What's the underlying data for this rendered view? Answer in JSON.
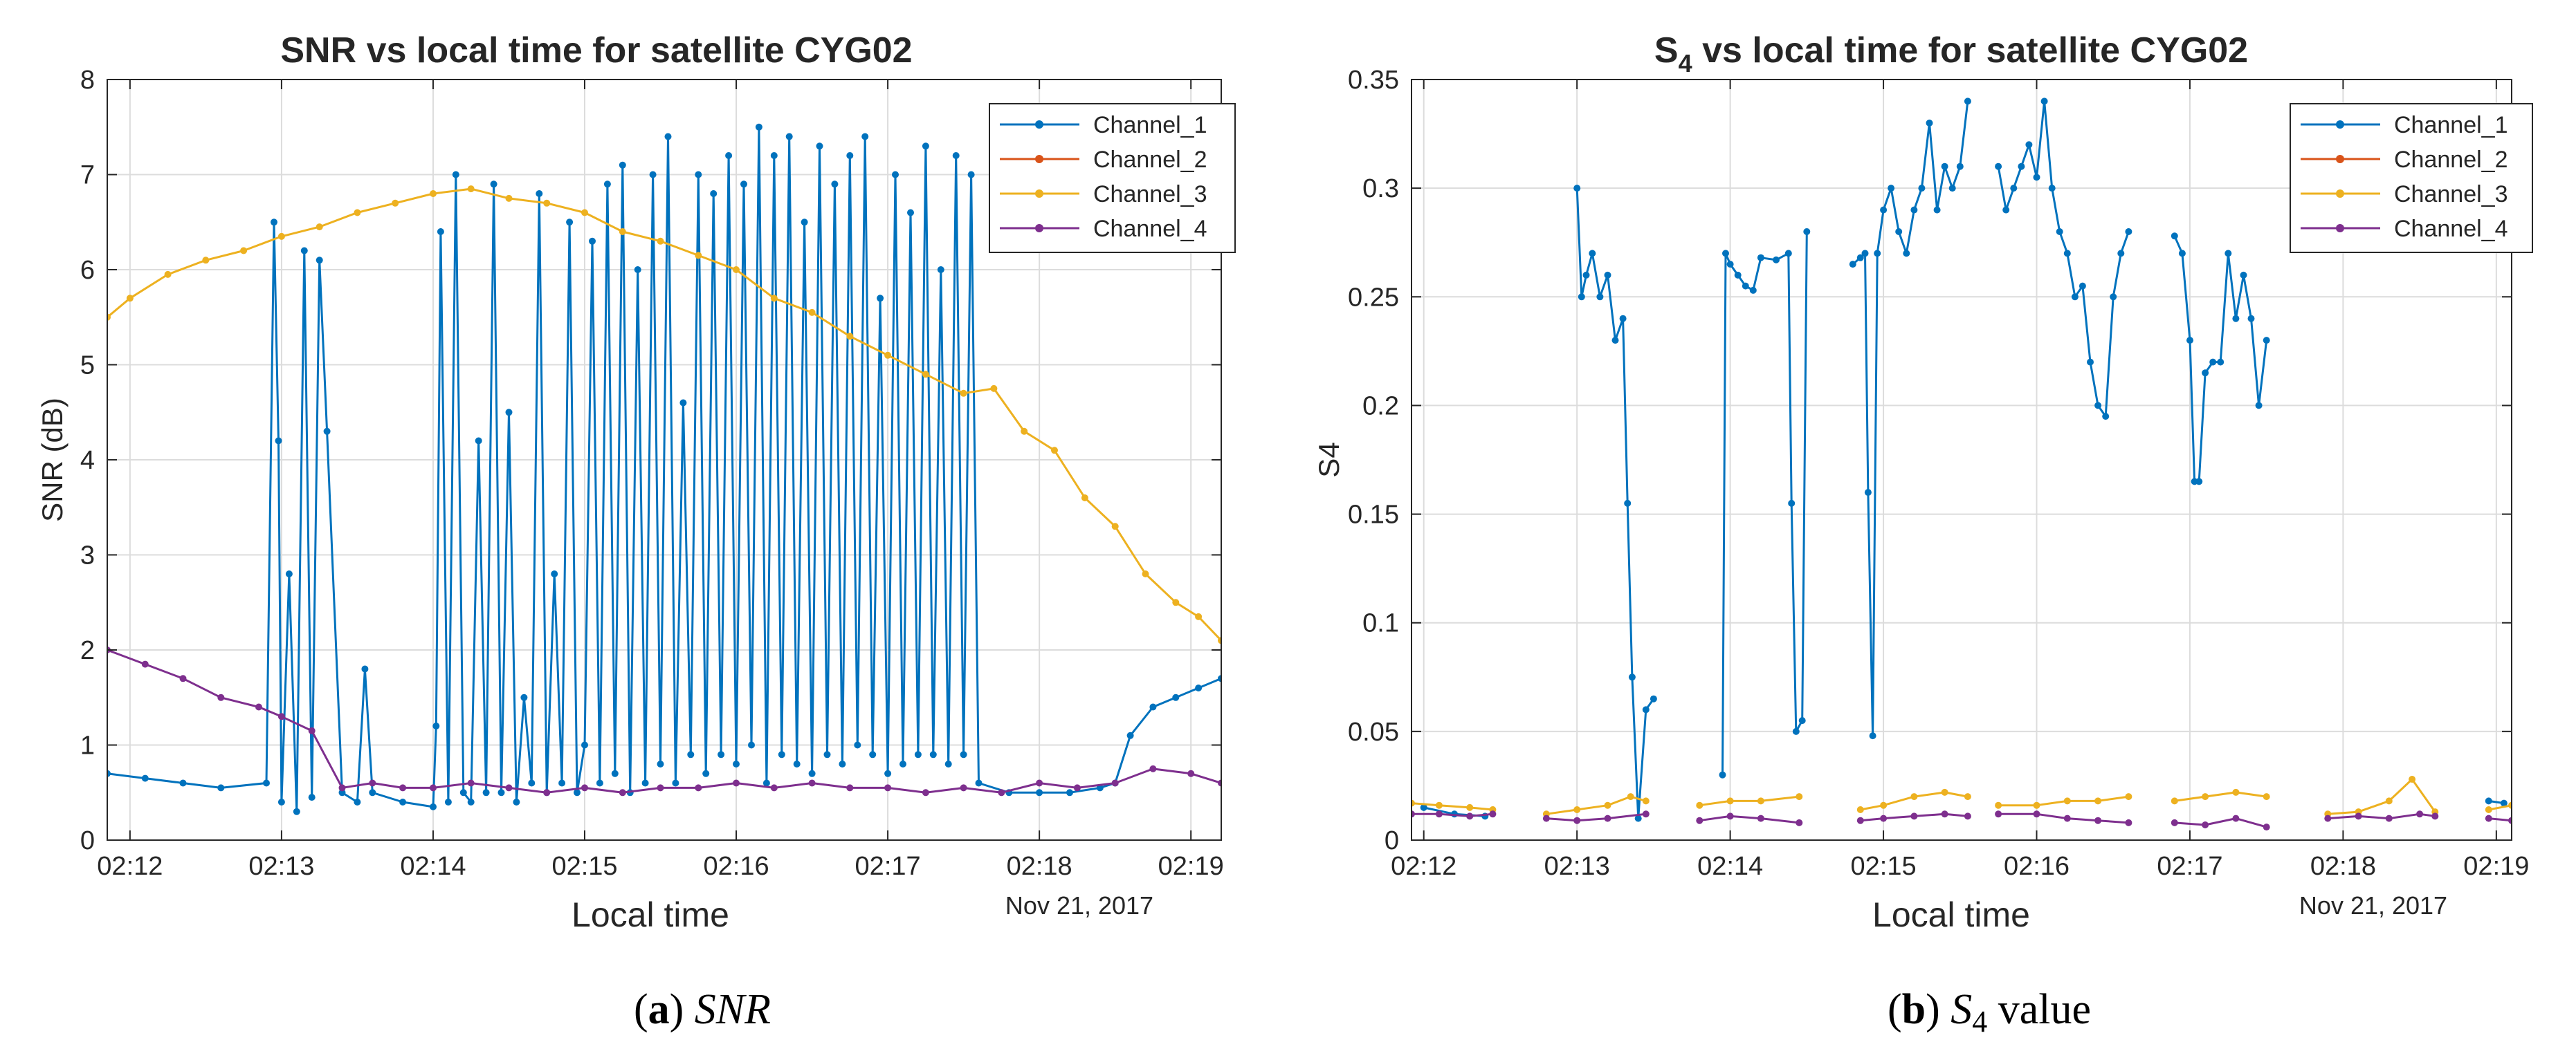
{
  "chart_data": [
    {
      "type": "line",
      "title": "SNR vs local time for satellite CYG02",
      "xlabel": "Local time",
      "ylabel": "SNR (dB)",
      "date_label": "Nov 21, 2017",
      "xlim_minutes": [
        11.85,
        19.2
      ],
      "ylim": [
        0,
        8
      ],
      "xticks": [
        "02:12",
        "02:13",
        "02:14",
        "02:15",
        "02:16",
        "02:17",
        "02:18",
        "02:19"
      ],
      "xtick_minutes": [
        12,
        13,
        14,
        15,
        16,
        17,
        18,
        19
      ],
      "yticks": [
        0,
        1,
        2,
        3,
        4,
        5,
        6,
        7,
        8
      ],
      "ytick_labels": [
        "0",
        "1",
        "2",
        "3",
        "4",
        "5",
        "6",
        "7",
        "8"
      ],
      "legend": [
        "Channel_1",
        "Channel_2",
        "Channel_3",
        "Channel_4"
      ],
      "legend_position": "top-right",
      "grid": true,
      "series": [
        {
          "name": "Channel_1",
          "color": "#0072bd",
          "x": [
            11.85,
            12.1,
            12.35,
            12.6,
            12.9,
            12.95,
            12.98,
            13.0,
            13.05,
            13.1,
            13.15,
            13.2,
            13.25,
            13.3,
            13.4,
            13.5,
            13.55,
            13.6,
            13.8,
            14.0,
            14.02,
            14.05,
            14.1,
            14.15,
            14.2,
            14.25,
            14.3,
            14.35,
            14.4,
            14.45,
            14.5,
            14.55,
            14.6,
            14.65,
            14.7,
            14.75,
            14.8,
            14.85,
            14.9,
            14.95,
            15.0,
            15.05,
            15.1,
            15.15,
            15.2,
            15.25,
            15.3,
            15.35,
            15.4,
            15.45,
            15.5,
            15.55,
            15.6,
            15.65,
            15.7,
            15.75,
            15.8,
            15.85,
            15.9,
            15.95,
            16.0,
            16.05,
            16.1,
            16.15,
            16.2,
            16.25,
            16.3,
            16.35,
            16.4,
            16.45,
            16.5,
            16.55,
            16.6,
            16.65,
            16.7,
            16.75,
            16.8,
            16.85,
            16.9,
            16.95,
            17.0,
            17.05,
            17.1,
            17.15,
            17.2,
            17.25,
            17.3,
            17.35,
            17.4,
            17.45,
            17.5,
            17.55,
            17.6,
            17.8,
            18.0,
            18.2,
            18.4,
            18.5,
            18.6,
            18.75,
            18.9,
            19.05,
            19.2
          ],
          "y": [
            0.7,
            0.65,
            0.6,
            0.55,
            0.6,
            6.5,
            4.2,
            0.4,
            2.8,
            0.3,
            6.2,
            0.45,
            6.1,
            4.3,
            0.5,
            0.4,
            1.8,
            0.5,
            0.4,
            0.35,
            1.2,
            6.4,
            0.4,
            7.0,
            0.5,
            0.4,
            4.2,
            0.5,
            6.9,
            0.5,
            4.5,
            0.4,
            1.5,
            0.6,
            6.8,
            0.5,
            2.8,
            0.6,
            6.5,
            0.5,
            1.0,
            6.3,
            0.6,
            6.9,
            0.7,
            7.1,
            0.5,
            6.0,
            0.6,
            7.0,
            0.8,
            7.4,
            0.6,
            4.6,
            0.9,
            7.0,
            0.7,
            6.8,
            0.9,
            7.2,
            0.8,
            6.9,
            1.0,
            7.5,
            0.6,
            7.2,
            0.9,
            7.4,
            0.8,
            6.5,
            0.7,
            7.3,
            0.9,
            6.9,
            0.8,
            7.2,
            1.0,
            7.4,
            0.9,
            5.7,
            0.7,
            7.0,
            0.8,
            6.6,
            0.9,
            7.3,
            0.9,
            6.0,
            0.8,
            7.2,
            0.9,
            7.0,
            0.6,
            0.5,
            0.5,
            0.5,
            0.55,
            0.6,
            1.1,
            1.4,
            1.5,
            1.6,
            1.7
          ]
        },
        {
          "name": "Channel_2",
          "color": "#d95319",
          "x": [],
          "y": []
        },
        {
          "name": "Channel_3",
          "color": "#edb120",
          "x": [
            11.85,
            12.0,
            12.25,
            12.5,
            12.75,
            13.0,
            13.25,
            13.5,
            13.75,
            14.0,
            14.25,
            14.5,
            14.75,
            15.0,
            15.25,
            15.5,
            15.75,
            16.0,
            16.25,
            16.5,
            16.75,
            17.0,
            17.25,
            17.5,
            17.7,
            17.9,
            18.1,
            18.3,
            18.5,
            18.7,
            18.9,
            19.05,
            19.2
          ],
          "y": [
            5.5,
            5.7,
            5.95,
            6.1,
            6.2,
            6.35,
            6.45,
            6.6,
            6.7,
            6.8,
            6.85,
            6.75,
            6.7,
            6.6,
            6.4,
            6.3,
            6.15,
            6.0,
            5.7,
            5.55,
            5.3,
            5.1,
            4.9,
            4.7,
            4.75,
            4.3,
            4.1,
            3.6,
            3.3,
            2.8,
            2.5,
            2.35,
            2.1
          ]
        },
        {
          "name": "Channel_4",
          "color": "#7e2f8e",
          "x": [
            11.85,
            12.1,
            12.35,
            12.6,
            12.85,
            13.0,
            13.2,
            13.4,
            13.6,
            13.8,
            14.0,
            14.25,
            14.5,
            14.75,
            15.0,
            15.25,
            15.5,
            15.75,
            16.0,
            16.25,
            16.5,
            16.75,
            17.0,
            17.25,
            17.5,
            17.75,
            18.0,
            18.25,
            18.5,
            18.75,
            19.0,
            19.2
          ],
          "y": [
            2.0,
            1.85,
            1.7,
            1.5,
            1.4,
            1.3,
            1.15,
            0.55,
            0.6,
            0.55,
            0.55,
            0.6,
            0.55,
            0.5,
            0.55,
            0.5,
            0.55,
            0.55,
            0.6,
            0.55,
            0.6,
            0.55,
            0.55,
            0.5,
            0.55,
            0.5,
            0.6,
            0.55,
            0.6,
            0.75,
            0.7,
            0.6
          ]
        }
      ]
    },
    {
      "type": "line",
      "title_main": "S",
      "title_sub": "4",
      "title_rest": " vs local time for satellite CYG02",
      "xlabel": "Local time",
      "ylabel": "S4",
      "date_label": "Nov 21, 2017",
      "xlim_minutes": [
        11.92,
        19.1
      ],
      "ylim": [
        0,
        0.35
      ],
      "xticks": [
        "02:12",
        "02:13",
        "02:14",
        "02:15",
        "02:16",
        "02:17",
        "02:18",
        "02:19"
      ],
      "xtick_minutes": [
        12,
        13,
        14,
        15,
        16,
        17,
        18,
        19
      ],
      "yticks": [
        0,
        0.05,
        0.1,
        0.15,
        0.2,
        0.25,
        0.3,
        0.35
      ],
      "ytick_labels": [
        "0",
        "0.05",
        "0.1",
        "0.15",
        "0.2",
        "0.25",
        "0.3",
        "0.35"
      ],
      "legend": [
        "Channel_1",
        "Channel_2",
        "Channel_3",
        "Channel_4"
      ],
      "legend_position": "top-right",
      "grid": true,
      "series": [
        {
          "name": "Channel_1",
          "color": "#0072bd",
          "segments": [
            {
              "x": [
                12.0,
                12.2,
                12.4
              ],
              "y": [
                0.015,
                0.012,
                0.011
              ]
            },
            {
              "x": [
                13.0,
                13.03,
                13.06,
                13.1,
                13.15,
                13.2,
                13.25,
                13.3,
                13.33,
                13.36,
                13.4,
                13.45,
                13.5
              ],
              "y": [
                0.3,
                0.25,
                0.26,
                0.27,
                0.25,
                0.26,
                0.23,
                0.24,
                0.155,
                0.075,
                0.01,
                0.06,
                0.065
              ]
            },
            {
              "x": [
                13.95,
                13.97,
                14.0,
                14.05,
                14.1,
                14.15,
                14.2,
                14.3,
                14.38,
                14.4,
                14.43,
                14.47,
                14.5
              ],
              "y": [
                0.03,
                0.27,
                0.265,
                0.26,
                0.255,
                0.253,
                0.268,
                0.267,
                0.27,
                0.155,
                0.05,
                0.055,
                0.28
              ]
            },
            {
              "x": [
                14.8,
                14.85,
                14.88,
                14.9,
                14.93,
                14.96,
                15.0,
                15.05,
                15.1,
                15.15,
                15.2,
                15.25,
                15.3,
                15.35,
                15.4,
                15.45,
                15.5,
                15.55
              ],
              "y": [
                0.265,
                0.268,
                0.27,
                0.16,
                0.048,
                0.27,
                0.29,
                0.3,
                0.28,
                0.27,
                0.29,
                0.3,
                0.33,
                0.29,
                0.31,
                0.3,
                0.31,
                0.34
              ]
            },
            {
              "x": [
                15.75,
                15.8,
                15.85,
                15.9,
                15.95,
                16.0,
                16.05,
                16.1,
                16.15,
                16.2,
                16.25,
                16.3,
                16.35,
                16.4,
                16.45,
                16.5,
                16.55,
                16.6
              ],
              "y": [
                0.31,
                0.29,
                0.3,
                0.31,
                0.32,
                0.305,
                0.34,
                0.3,
                0.28,
                0.27,
                0.25,
                0.255,
                0.22,
                0.2,
                0.195,
                0.25,
                0.27,
                0.28
              ]
            },
            {
              "x": [
                16.9,
                16.95,
                17.0,
                17.03,
                17.06,
                17.1,
                17.15,
                17.2,
                17.25,
                17.3,
                17.35,
                17.4,
                17.45,
                17.5
              ],
              "y": [
                0.278,
                0.27,
                0.23,
                0.165,
                0.165,
                0.215,
                0.22,
                0.22,
                0.27,
                0.24,
                0.26,
                0.24,
                0.2,
                0.23
              ]
            },
            {
              "x": [
                18.95,
                19.05
              ],
              "y": [
                0.018,
                0.017
              ]
            }
          ]
        },
        {
          "name": "Channel_2",
          "color": "#d95319",
          "segments": []
        },
        {
          "name": "Channel_3",
          "color": "#edb120",
          "segments": [
            {
              "x": [
                11.92,
                12.1,
                12.3,
                12.45
              ],
              "y": [
                0.017,
                0.016,
                0.015,
                0.014
              ]
            },
            {
              "x": [
                12.8,
                13.0,
                13.2,
                13.35,
                13.45
              ],
              "y": [
                0.012,
                0.014,
                0.016,
                0.02,
                0.018
              ]
            },
            {
              "x": [
                13.8,
                14.0,
                14.2,
                14.45
              ],
              "y": [
                0.016,
                0.018,
                0.018,
                0.02
              ]
            },
            {
              "x": [
                14.85,
                15.0,
                15.2,
                15.4,
                15.55
              ],
              "y": [
                0.014,
                0.016,
                0.02,
                0.022,
                0.02
              ]
            },
            {
              "x": [
                15.75,
                16.0,
                16.2,
                16.4,
                16.6
              ],
              "y": [
                0.016,
                0.016,
                0.018,
                0.018,
                0.02
              ]
            },
            {
              "x": [
                16.9,
                17.1,
                17.3,
                17.5
              ],
              "y": [
                0.018,
                0.02,
                0.022,
                0.02
              ]
            },
            {
              "x": [
                17.9,
                18.1,
                18.3,
                18.45,
                18.6
              ],
              "y": [
                0.012,
                0.013,
                0.018,
                0.028,
                0.013
              ]
            },
            {
              "x": [
                18.95,
                19.1
              ],
              "y": [
                0.014,
                0.016
              ]
            }
          ]
        },
        {
          "name": "Channel_4",
          "color": "#7e2f8e",
          "segments": [
            {
              "x": [
                11.92,
                12.1,
                12.3,
                12.45
              ],
              "y": [
                0.012,
                0.012,
                0.011,
                0.012
              ]
            },
            {
              "x": [
                12.8,
                13.0,
                13.2,
                13.45
              ],
              "y": [
                0.01,
                0.009,
                0.01,
                0.012
              ]
            },
            {
              "x": [
                13.8,
                14.0,
                14.2,
                14.45
              ],
              "y": [
                0.009,
                0.011,
                0.01,
                0.008
              ]
            },
            {
              "x": [
                14.85,
                15.0,
                15.2,
                15.4,
                15.55
              ],
              "y": [
                0.009,
                0.01,
                0.011,
                0.012,
                0.011
              ]
            },
            {
              "x": [
                15.75,
                16.0,
                16.2,
                16.4,
                16.6
              ],
              "y": [
                0.012,
                0.012,
                0.01,
                0.009,
                0.008
              ]
            },
            {
              "x": [
                16.9,
                17.1,
                17.3,
                17.5
              ],
              "y": [
                0.008,
                0.007,
                0.01,
                0.006
              ]
            },
            {
              "x": [
                17.9,
                18.1,
                18.3,
                18.5,
                18.6
              ],
              "y": [
                0.01,
                0.011,
                0.01,
                0.012,
                0.011
              ]
            },
            {
              "x": [
                18.95,
                19.1
              ],
              "y": [
                0.01,
                0.009
              ]
            }
          ]
        }
      ]
    }
  ],
  "captions": {
    "a_label": "a",
    "a_text": "SNR",
    "b_label": "b",
    "b_main": "S",
    "b_sub": "4",
    "b_text": " value"
  }
}
